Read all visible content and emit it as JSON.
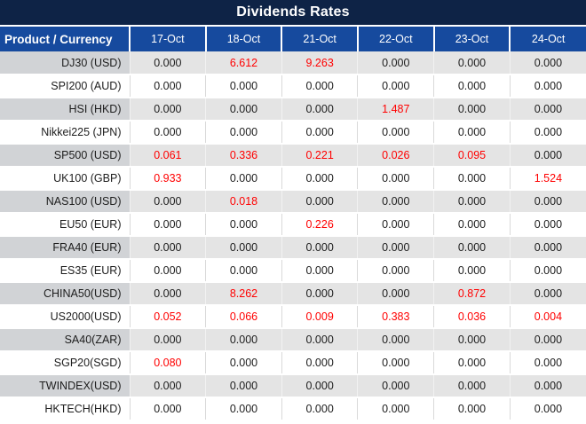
{
  "title": "Dividends Rates",
  "table": {
    "header": {
      "product_label": "Product / Currency",
      "dates": [
        "17-Oct",
        "18-Oct",
        "21-Oct",
        "22-Oct",
        "23-Oct",
        "24-Oct"
      ]
    },
    "rows": [
      {
        "product": "DJ30 (USD)",
        "values": [
          "0.000",
          "6.612",
          "9.263",
          "0.000",
          "0.000",
          "0.000"
        ]
      },
      {
        "product": "SPI200 (AUD)",
        "values": [
          "0.000",
          "0.000",
          "0.000",
          "0.000",
          "0.000",
          "0.000"
        ]
      },
      {
        "product": "HSI (HKD)",
        "values": [
          "0.000",
          "0.000",
          "0.000",
          "1.487",
          "0.000",
          "0.000"
        ]
      },
      {
        "product": "Nikkei225 (JPN)",
        "values": [
          "0.000",
          "0.000",
          "0.000",
          "0.000",
          "0.000",
          "0.000"
        ]
      },
      {
        "product": "SP500 (USD)",
        "values": [
          "0.061",
          "0.336",
          "0.221",
          "0.026",
          "0.095",
          "0.000"
        ]
      },
      {
        "product": "UK100 (GBP)",
        "values": [
          "0.933",
          "0.000",
          "0.000",
          "0.000",
          "0.000",
          "1.524"
        ]
      },
      {
        "product": "NAS100 (USD)",
        "values": [
          "0.000",
          "0.018",
          "0.000",
          "0.000",
          "0.000",
          "0.000"
        ]
      },
      {
        "product": "EU50 (EUR)",
        "values": [
          "0.000",
          "0.000",
          "0.226",
          "0.000",
          "0.000",
          "0.000"
        ]
      },
      {
        "product": "FRA40 (EUR)",
        "values": [
          "0.000",
          "0.000",
          "0.000",
          "0.000",
          "0.000",
          "0.000"
        ]
      },
      {
        "product": "ES35 (EUR)",
        "values": [
          "0.000",
          "0.000",
          "0.000",
          "0.000",
          "0.000",
          "0.000"
        ]
      },
      {
        "product": "CHINA50(USD)",
        "values": [
          "0.000",
          "8.262",
          "0.000",
          "0.000",
          "0.872",
          "0.000"
        ]
      },
      {
        "product": "US2000(USD)",
        "values": [
          "0.052",
          "0.066",
          "0.009",
          "0.383",
          "0.036",
          "0.004"
        ]
      },
      {
        "product": "SA40(ZAR)",
        "values": [
          "0.000",
          "0.000",
          "0.000",
          "0.000",
          "0.000",
          "0.000"
        ]
      },
      {
        "product": "SGP20(SGD)",
        "values": [
          "0.080",
          "0.000",
          "0.000",
          "0.000",
          "0.000",
          "0.000"
        ]
      },
      {
        "product": "TWINDEX(USD)",
        "values": [
          "0.000",
          "0.000",
          "0.000",
          "0.000",
          "0.000",
          "0.000"
        ]
      },
      {
        "product": "HKTECH(HKD)",
        "values": [
          "0.000",
          "0.000",
          "0.000",
          "0.000",
          "0.000",
          "0.000"
        ]
      }
    ]
  },
  "colors": {
    "title_bg": "#0e2346",
    "header_bg": "#164a9e",
    "alt_label_bg": "#d1d3d6",
    "alt_value_bg": "#e4e4e4",
    "value_red": "#ff0000",
    "value_black": "#1d1d1d",
    "grid_line": "#d9d9d9"
  }
}
